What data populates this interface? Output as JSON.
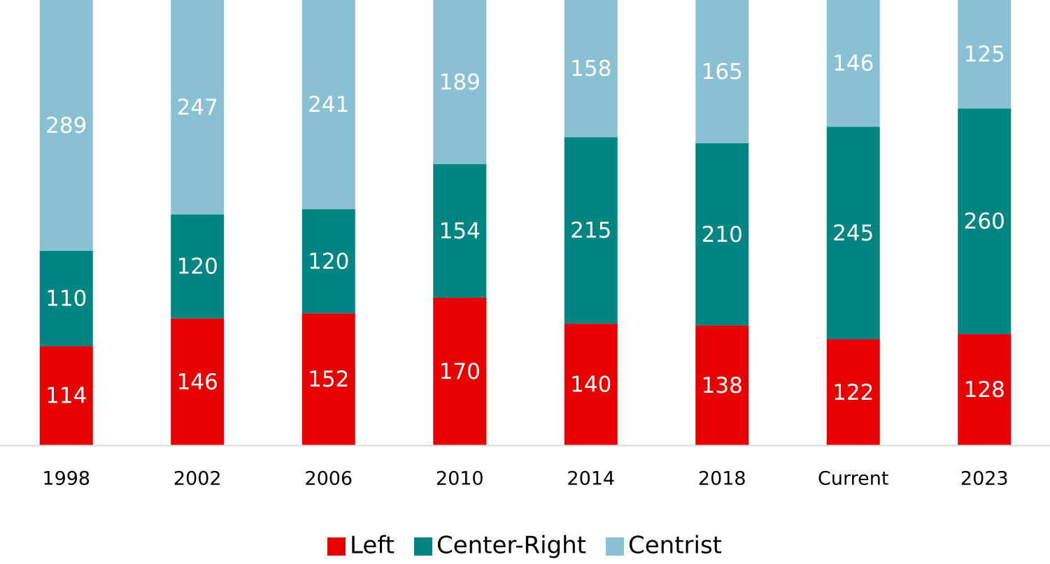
{
  "chart_data": {
    "type": "stacked_bar",
    "categories": [
      "1998",
      "2002",
      "2006",
      "2010",
      "2014",
      "2018",
      "Current",
      "2023"
    ],
    "series": [
      {
        "name": "Left",
        "color": "#e60000",
        "values": [
          114,
          146,
          152,
          170,
          140,
          138,
          122,
          128
        ]
      },
      {
        "name": "Center-Right",
        "color": "#008583",
        "values": [
          110,
          120,
          120,
          154,
          215,
          210,
          245,
          260
        ]
      },
      {
        "name": "Centrist",
        "color": "#8ac0d3",
        "values": [
          289,
          247,
          241,
          189,
          158,
          165,
          146,
          125
        ]
      }
    ],
    "ylim": [
      0,
      513
    ],
    "legend": "bottom"
  }
}
